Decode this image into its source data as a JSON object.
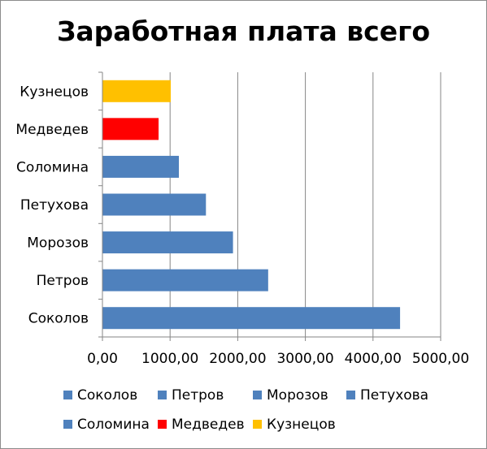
{
  "chart_data": {
    "type": "bar",
    "orientation": "horizontal",
    "title": "Заработная плата всего",
    "categories": [
      "Соколов",
      "Петров",
      "Морозов",
      "Петухова",
      "Соломина",
      "Медведев",
      "Кузнецов"
    ],
    "values": [
      4400,
      2450,
      1930,
      1530,
      1130,
      830,
      1010
    ],
    "colors": [
      "#4f81bd",
      "#4f81bd",
      "#4f81bd",
      "#4f81bd",
      "#4f81bd",
      "#ff0000",
      "#ffc000"
    ],
    "xlim": [
      0,
      5000
    ],
    "xticks": [
      0,
      1000,
      2000,
      3000,
      4000,
      5000
    ],
    "xtick_labels": [
      "0,00",
      "1000,00",
      "2000,00",
      "3000,00",
      "4000,00",
      "5000,00"
    ],
    "grid": true,
    "legend": {
      "placement": "bottom",
      "entries": [
        {
          "label": "Соколов",
          "color": "#4f81bd"
        },
        {
          "label": "Петров",
          "color": "#4f81bd"
        },
        {
          "label": "Морозов",
          "color": "#4f81bd"
        },
        {
          "label": "Петухова",
          "color": "#4f81bd"
        },
        {
          "label": "Соломина",
          "color": "#4f81bd"
        },
        {
          "label": "Медведев",
          "color": "#ff0000"
        },
        {
          "label": "Кузнецов",
          "color": "#ffc000"
        }
      ]
    }
  }
}
